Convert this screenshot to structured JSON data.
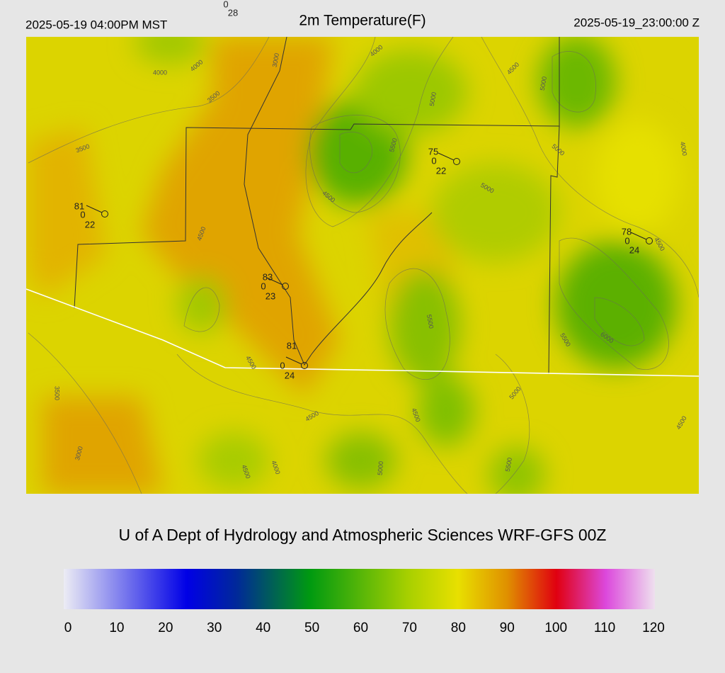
{
  "header": {
    "local_time": "2025-05-19 04:00PM MST",
    "title": "2m Temperature(F)",
    "valid_time": "2025-05-19_23:00:00 Z"
  },
  "stations": [
    {
      "wind": 0,
      "dewpoint": 28
    },
    {
      "temp": 81,
      "wind": 0,
      "dewpoint": 22
    },
    {
      "temp": 75,
      "wind": 0,
      "dewpoint": 22
    },
    {
      "temp": 78,
      "wind": 0,
      "dewpoint": 24
    },
    {
      "temp": 83,
      "wind": 0,
      "dewpoint": 23
    },
    {
      "temp": 81,
      "wind": 0,
      "dewpoint": 24
    }
  ],
  "contour_labels": [
    3000,
    4000,
    4000,
    3500,
    3500,
    4000,
    4500,
    5000,
    5000,
    5500,
    5000,
    4000,
    4500,
    5000,
    4500,
    4500,
    5500,
    6000,
    5500,
    4500,
    3500,
    5000,
    4500,
    4500,
    3000,
    4000,
    4500,
    5000,
    5500,
    4500
  ],
  "footer": {
    "credit": "U of A Dept of Hydrology and Atmospheric Sciences WRF-GFS 00Z"
  },
  "colorbar": {
    "range": [
      0,
      120
    ],
    "ticks": [
      0,
      10,
      20,
      30,
      40,
      50,
      60,
      70,
      80,
      90,
      100,
      110,
      120
    ],
    "stops": [
      {
        "value": 0,
        "color": "#ececf4"
      },
      {
        "value": 25,
        "color": "#0000e6"
      },
      {
        "value": 35,
        "color": "#00289a"
      },
      {
        "value": 50,
        "color": "#009a10"
      },
      {
        "value": 70,
        "color": "#a8d000"
      },
      {
        "value": 80,
        "color": "#e8e000"
      },
      {
        "value": 90,
        "color": "#e09000"
      },
      {
        "value": 100,
        "color": "#e00010"
      },
      {
        "value": 110,
        "color": "#dc48dc"
      },
      {
        "value": 120,
        "color": "#eee0ee"
      }
    ]
  }
}
